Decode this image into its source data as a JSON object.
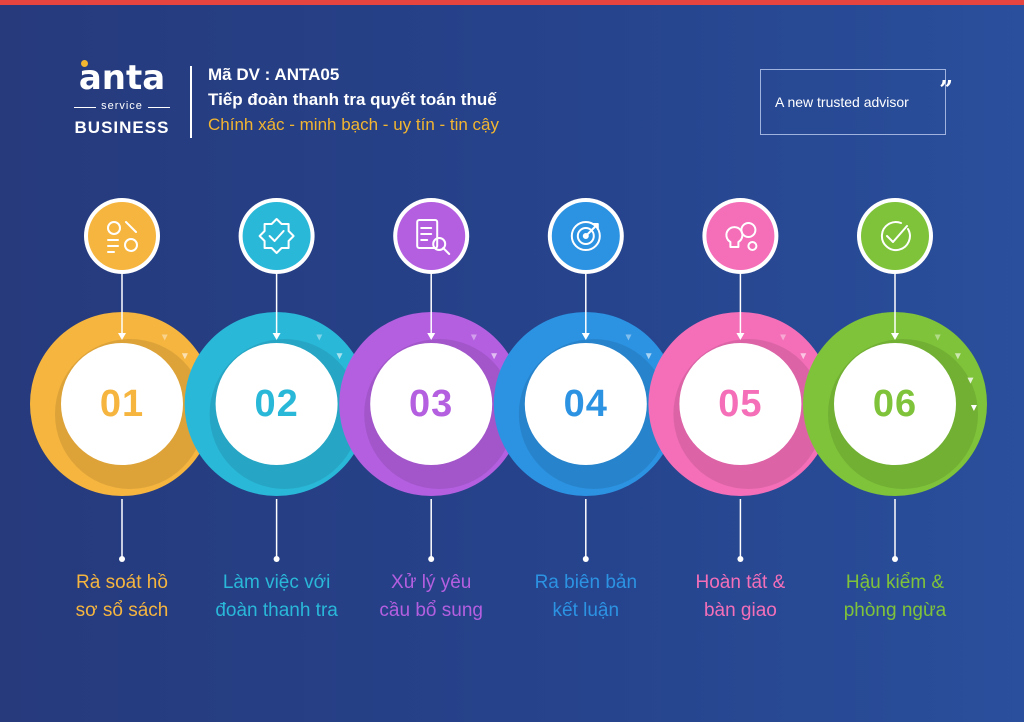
{
  "brand": {
    "word": "anta",
    "service": "service",
    "business": "BUSINESS"
  },
  "header": {
    "line1": "Mã DV : ANTA05",
    "line2": "Tiếp đoàn thanh tra quyết toán thuế",
    "line3": "Chính xác - minh bạch - uy tín - tin cậy"
  },
  "advisor": {
    "text": "A new trusted advisor"
  },
  "colors": {
    "accent_bar": "#e6453f",
    "background": "#26418a",
    "tagline": "#f2b530"
  },
  "steps": [
    {
      "number": "01",
      "label_line1": "Rà soát hồ",
      "label_line2": "sơ sổ sách",
      "color": "#f5b53f",
      "icon": "gears-checklist-icon"
    },
    {
      "number": "02",
      "label_line1": "Làm việc với",
      "label_line2": "đoàn thanh tra",
      "color": "#2ab8d9",
      "icon": "badge-check-icon"
    },
    {
      "number": "03",
      "label_line1": "Xử lý yêu",
      "label_line2": "cầu bổ sung",
      "color": "#b45fe0",
      "icon": "clipboard-search-icon"
    },
    {
      "number": "04",
      "label_line1": "Ra biên bản",
      "label_line2": "kết luận",
      "color": "#2c93e3",
      "icon": "target-arrow-icon"
    },
    {
      "number": "05",
      "label_line1": "Hoàn tất &",
      "label_line2": "bàn giao",
      "color": "#f46fb8",
      "icon": "bulb-gears-icon"
    },
    {
      "number": "06",
      "label_line1": "Hậu kiểm &",
      "label_line2": "phòng ngừa",
      "color": "#7fc33a",
      "icon": "check-circle-icon"
    }
  ]
}
